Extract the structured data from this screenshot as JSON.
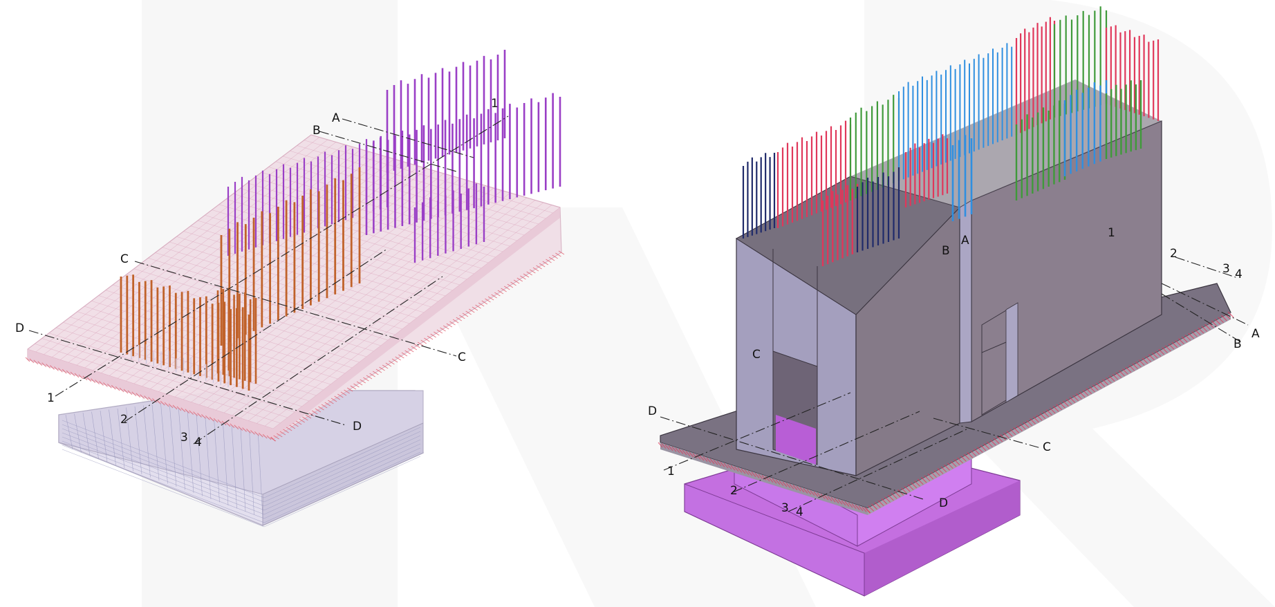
{
  "left_model": {
    "grid_labels": {
      "A": "A",
      "B": "B",
      "C_top": "C",
      "C_right": "C",
      "D_left": "D",
      "D_right": "D",
      "n1_top": "1",
      "n1_left": "1",
      "n2": "2",
      "n3": "3",
      "n4": "4"
    },
    "colors": {
      "rebar_purple": "#9a3fc6",
      "rebar_orange": "#c0622a",
      "slab_pink": "#eed8e2",
      "mesh_red": "#e05a6a",
      "foundation": "#d9d4e4"
    }
  },
  "right_model": {
    "grid_labels": {
      "wall_1": "1",
      "wall_A": "A",
      "wall_B": "B",
      "wall_C": "C",
      "n2": "2",
      "n3": "3",
      "n4": "4",
      "A_right": "A",
      "B_right": "B",
      "C_bottom": "C",
      "D_left": "D",
      "D_bottom": "D",
      "n1_bottom": "1",
      "n2_bottom": "2",
      "n3_bottom": "3",
      "n4_bottom": "4"
    },
    "colors": {
      "wall_gray": "#8b7f8e",
      "wall_light": "#a9a3c2",
      "slab": "#7c7480",
      "pile_cap": "#c66ee0",
      "rebar_red": "#e0375a",
      "rebar_blue": "#2f8fe0",
      "rebar_green": "#3f9a3a",
      "rebar_navy": "#1f2a6a"
    }
  }
}
